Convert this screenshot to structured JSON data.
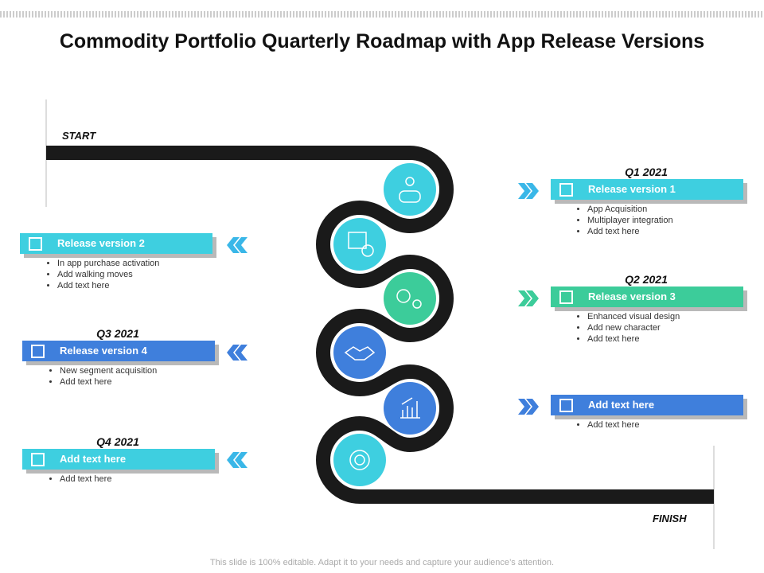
{
  "title": "Commodity Portfolio Quarterly Roadmap with App Release Versions",
  "start": "START",
  "finish": "FINISH",
  "footer": "This slide is 100% editable. Adapt it to your needs and capture your audience’s attention.",
  "right": [
    {
      "quarter": "Q1 2021",
      "title": "Release version 1",
      "bullets": [
        "App Acquisition",
        "Multiplayer integration",
        "Add text here"
      ]
    },
    {
      "quarter": "Q2 2021",
      "title": "Release version 3",
      "bullets": [
        "Enhanced visual design",
        "Add new character",
        "Add text here"
      ]
    },
    {
      "title": "Add text here",
      "bullets": [
        "Add text here"
      ]
    }
  ],
  "left": [
    {
      "title": "Release version 2",
      "bullets": [
        "In app purchase activation",
        "Add walking moves",
        "Add text here"
      ]
    },
    {
      "quarter": "Q3 2021",
      "title": "Release version 4",
      "bullets": [
        "New segment acquisition",
        "Add text here"
      ]
    },
    {
      "quarter": "Q4 2021",
      "title": "Add text here",
      "bullets": [
        "Add text here"
      ]
    }
  ]
}
